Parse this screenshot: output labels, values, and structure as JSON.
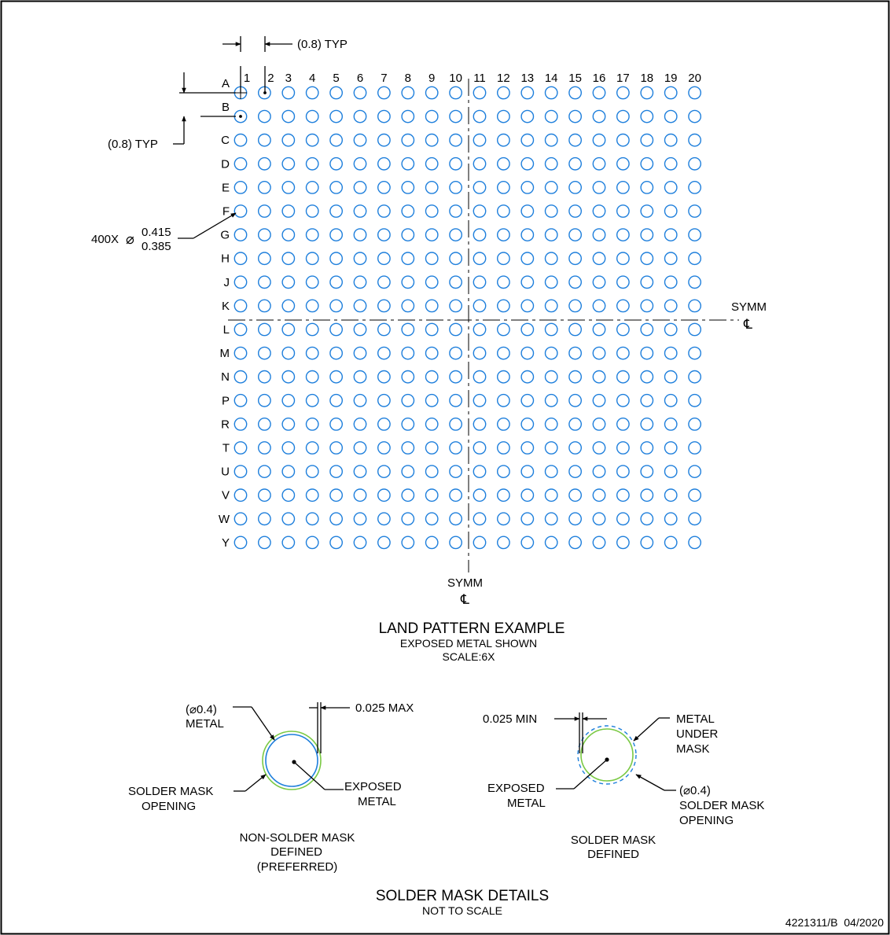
{
  "land_pattern": {
    "columns": [
      "1",
      "2",
      "3",
      "4",
      "5",
      "6",
      "7",
      "8",
      "9",
      "10",
      "11",
      "12",
      "13",
      "14",
      "15",
      "16",
      "17",
      "18",
      "19",
      "20"
    ],
    "rows": [
      "A",
      "B",
      "C",
      "D",
      "E",
      "F",
      "G",
      "H",
      "J",
      "K",
      "L",
      "M",
      "N",
      "P",
      "R",
      "T",
      "U",
      "V",
      "W",
      "Y"
    ],
    "pitch_x_label": "(0.8) TYP",
    "pitch_y_label": "(0.8) TYP",
    "pad_count_label": "400X",
    "pad_dia_symbol": "⌀",
    "pad_dia_max": "0.415",
    "pad_dia_min": "0.385",
    "symm_label": "SYMM",
    "centerline_symbol": "℄",
    "title": "LAND PATTERN EXAMPLE",
    "subtitle": "EXPOSED METAL SHOWN",
    "scale": "SCALE:6X",
    "pad_color": "#1e7fdc"
  },
  "mask_details": {
    "nsmd": {
      "metal_line1": "(⌀0.4)",
      "metal_line2": "METAL",
      "gap_label": "0.025 MAX",
      "opening_line1": "SOLDER MASK",
      "opening_line2": "OPENING",
      "exposed_line1": "EXPOSED",
      "exposed_line2": "METAL",
      "caption_line1": "NON-SOLDER MASK",
      "caption_line2": "DEFINED",
      "caption_line3": "(PREFERRED)"
    },
    "smd": {
      "gap_label": "0.025 MIN",
      "metal_line1": "METAL",
      "metal_line2": "UNDER",
      "metal_line3": "MASK",
      "exposed_line1": "EXPOSED",
      "exposed_line2": "METAL",
      "opening_line1": "(⌀0.4)",
      "opening_line2": "SOLDER MASK",
      "opening_line3": "OPENING",
      "caption_line1": "SOLDER MASK",
      "caption_line2": "DEFINED"
    },
    "title": "SOLDER MASK DETAILS",
    "subtitle": "NOT TO SCALE",
    "mask_color": "#7ac943",
    "metal_color": "#1e7fdc"
  },
  "footer": {
    "doc_id": "4221311/B  04/2020"
  }
}
